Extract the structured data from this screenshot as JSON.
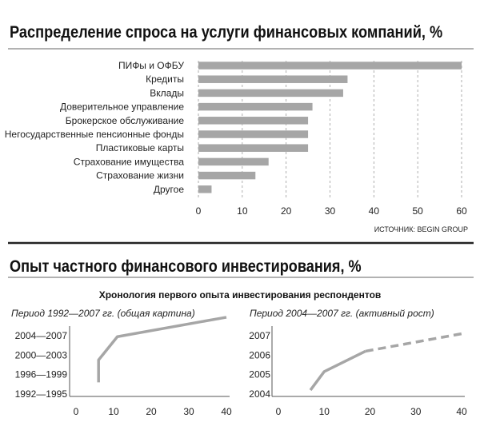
{
  "chart_data": [
    {
      "type": "bar",
      "title": "Распределение спроса на услуги финансовых компаний, %",
      "categories": [
        "ПИФы и ОФБУ",
        "Кредиты",
        "Вклады",
        "Доверительное управление",
        "Брокерское обслуживание",
        "Негосударственные пенсионные фонды",
        "Пластиковые карты",
        "Страхование имущества",
        "Страхование жизни",
        "Другое"
      ],
      "values": [
        60,
        34,
        33,
        26,
        25,
        25,
        25,
        16,
        13,
        3
      ],
      "xlim": [
        0,
        60
      ],
      "xticks": [
        "0",
        "10",
        "20",
        "30",
        "40",
        "50",
        "60"
      ],
      "source": "ИСТОЧНИК: BEGIN GROUP",
      "color": "#a6a6a6"
    },
    {
      "type": "line",
      "title": "Опыт частного финансового инвестирования, %",
      "subtitle": "Хронология первого опыта инвестирования респондентов",
      "panels": [
        {
          "title": "Период 1992—2007 гг. (общая картина)",
          "y_categories": [
            "1992—1995",
            "1996—1999",
            "2000—2003",
            "2004—2007"
          ],
          "x": [
            6,
            6,
            11,
            40
          ],
          "y": [
            0.6,
            1.75,
            2.95,
            3.95
          ],
          "xlim": [
            0,
            40
          ],
          "xticks": [
            "0",
            "10",
            "20",
            "30",
            "40"
          ],
          "color": "#a6a6a6"
        },
        {
          "title": "Период 2004—2007 гг. (активный рост)",
          "y_categories": [
            "2004",
            "2005",
            "2006",
            "2007"
          ],
          "solid": {
            "x": [
              7,
              10,
              19
            ],
            "y": [
              2004.2,
              2005.15,
              2006.2
            ]
          },
          "dashed": {
            "x": [
              19,
              40
            ],
            "y": [
              2006.2,
              2007.1
            ]
          },
          "xlim": [
            0,
            40
          ],
          "xticks": [
            "0",
            "10",
            "20",
            "30",
            "40"
          ],
          "color": "#a6a6a6"
        }
      ]
    }
  ]
}
